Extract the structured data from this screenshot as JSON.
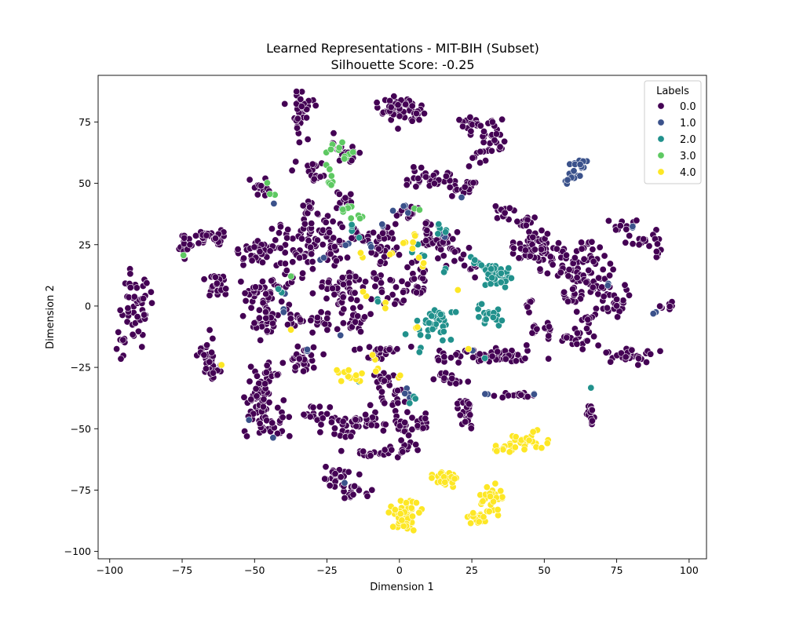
{
  "chart_data": {
    "type": "scatter",
    "title": "Learned Representations - MIT-BIH (Subset)",
    "subtitle": "Silhouette Score: -0.25",
    "xlabel": "Dimension 1",
    "ylabel": "Dimension 2",
    "xlim": [
      -104,
      106
    ],
    "ylim": [
      -103,
      94
    ],
    "xticks": [
      -100,
      -75,
      -50,
      -25,
      0,
      25,
      50,
      75,
      100
    ],
    "yticks": [
      -100,
      -75,
      -50,
      -25,
      0,
      25,
      50,
      75
    ],
    "grid": false,
    "legend": {
      "title": "Labels",
      "placement": "top-right"
    },
    "series": [
      {
        "name": "0.0",
        "color": "#440154",
        "clusters": [
          [
            -91,
            0,
            3,
            10,
            40
          ],
          [
            -95,
            -15,
            2,
            5,
            10
          ],
          [
            -88,
            5,
            3,
            3,
            8
          ],
          [
            -34,
            78,
            2,
            5,
            30
          ],
          [
            -33,
            83,
            3,
            2,
            10
          ],
          [
            -75,
            24,
            2,
            3,
            15
          ],
          [
            -67,
            28,
            5,
            2,
            25
          ],
          [
            -62,
            28,
            2,
            2,
            8
          ],
          [
            -62,
            8,
            3,
            3,
            25
          ],
          [
            -66,
            -20,
            2,
            6,
            25
          ],
          [
            -64,
            -26,
            2,
            3,
            8
          ],
          [
            0,
            80,
            4,
            3,
            50
          ],
          [
            6,
            78,
            2,
            2,
            10
          ],
          [
            -31,
            57,
            3,
            2,
            10
          ],
          [
            -19,
            62,
            3,
            3,
            30
          ],
          [
            -18,
            43,
            2,
            2,
            10
          ],
          [
            -48,
            48,
            2,
            2,
            15
          ],
          [
            -49,
            22,
            5,
            4,
            40
          ],
          [
            -33,
            31,
            3,
            4,
            15
          ],
          [
            -32,
            40,
            3,
            2,
            10
          ],
          [
            -48,
            4,
            4,
            3,
            30
          ],
          [
            -46,
            -7,
            3,
            4,
            30
          ],
          [
            -33,
            22,
            4,
            4,
            25
          ],
          [
            -27,
            -7,
            3,
            3,
            15
          ],
          [
            -34,
            -22,
            3,
            4,
            30
          ],
          [
            -48,
            -38,
            3,
            8,
            60
          ],
          [
            -42,
            -48,
            3,
            3,
            20
          ],
          [
            -45,
            -28,
            3,
            3,
            15
          ],
          [
            -28,
            -45,
            4,
            3,
            20
          ],
          [
            -17,
            -48,
            5,
            3,
            30
          ],
          [
            -10,
            -45,
            3,
            3,
            10
          ],
          [
            -22,
            -70,
            3,
            3,
            20
          ],
          [
            -15,
            -76,
            4,
            2,
            15
          ],
          [
            -10,
            -60,
            4,
            1,
            15
          ],
          [
            0,
            -58,
            4,
            2,
            15
          ],
          [
            -22,
            22,
            3,
            4,
            25
          ],
          [
            -17,
            10,
            3,
            3,
            20
          ],
          [
            -13,
            28,
            3,
            3,
            15
          ],
          [
            -5,
            28,
            3,
            3,
            15
          ],
          [
            -20,
            2,
            3,
            3,
            20
          ],
          [
            -16,
            -8,
            3,
            3,
            15
          ],
          [
            -8,
            10,
            4,
            3,
            15
          ],
          [
            -7,
            -18,
            6,
            2,
            20
          ],
          [
            -5,
            -30,
            4,
            2,
            15
          ],
          [
            -2,
            -38,
            3,
            3,
            15
          ],
          [
            2,
            -48,
            4,
            3,
            20
          ],
          [
            8,
            -47,
            3,
            2,
            10
          ],
          [
            2,
            38,
            3,
            3,
            15
          ],
          [
            12,
            52,
            6,
            3,
            35
          ],
          [
            22,
            48,
            3,
            2,
            15
          ],
          [
            26,
            74,
            4,
            2,
            20
          ],
          [
            33,
            68,
            3,
            4,
            20
          ],
          [
            10,
            30,
            3,
            4,
            20
          ],
          [
            18,
            22,
            3,
            3,
            15
          ],
          [
            25,
            18,
            2,
            3,
            10
          ],
          [
            5,
            10,
            4,
            4,
            25
          ],
          [
            18,
            -20,
            4,
            2,
            15
          ],
          [
            17,
            -30,
            4,
            2,
            15
          ],
          [
            23,
            -42,
            2,
            4,
            15
          ],
          [
            35,
            -20,
            8,
            2,
            50
          ],
          [
            36,
            38,
            3,
            2,
            15
          ],
          [
            44,
            34,
            3,
            2,
            15
          ],
          [
            45,
            25,
            5,
            4,
            40
          ],
          [
            52,
            20,
            4,
            4,
            30
          ],
          [
            58,
            15,
            5,
            4,
            30
          ],
          [
            60,
            5,
            3,
            3,
            15
          ],
          [
            66,
            17,
            4,
            6,
            30
          ],
          [
            70,
            5,
            4,
            4,
            25
          ],
          [
            75,
            0,
            3,
            2,
            15
          ],
          [
            64,
            -10,
            2,
            6,
            20
          ],
          [
            57,
            -13,
            3,
            2,
            10
          ],
          [
            48,
            -10,
            4,
            2,
            15
          ],
          [
            80,
            -20,
            5,
            2,
            35
          ],
          [
            79,
            34,
            3,
            2,
            10
          ],
          [
            85,
            27,
            4,
            3,
            15
          ],
          [
            89,
            22,
            2,
            2,
            6
          ],
          [
            93,
            0,
            2,
            2,
            8
          ],
          [
            66,
            -44,
            1,
            3,
            15
          ],
          [
            45,
            0,
            1,
            2,
            6
          ],
          [
            40,
            -36,
            5,
            1,
            15
          ],
          [
            23,
            -48,
            2,
            3,
            8
          ],
          [
            -5,
            22,
            3,
            3,
            15
          ],
          [
            0,
            2,
            3,
            3,
            10
          ],
          [
            14,
            28,
            3,
            3,
            15
          ],
          [
            -38,
            10,
            3,
            3,
            15
          ],
          [
            -36,
            -5,
            3,
            3,
            15
          ],
          [
            -24,
            8,
            3,
            3,
            15
          ],
          [
            30,
            62,
            3,
            3,
            10
          ],
          [
            -42,
            28,
            3,
            3,
            10
          ],
          [
            -25,
            32,
            3,
            3,
            15
          ],
          [
            -28,
            52,
            2,
            2,
            8
          ]
        ]
      },
      {
        "name": "1.0",
        "color": "#3b528b",
        "clusters": [
          [
            61,
            56,
            2,
            3,
            18
          ],
          [
            58,
            50,
            1,
            1,
            3
          ],
          [
            72,
            10,
            1,
            1,
            2
          ],
          [
            88,
            -4,
            1,
            1,
            2
          ],
          [
            80,
            32,
            1,
            1,
            2
          ],
          [
            0,
            38,
            2,
            2,
            4
          ],
          [
            -40,
            -2,
            1,
            1,
            2
          ],
          [
            -20,
            -72,
            1,
            1,
            1
          ],
          [
            -52,
            -46,
            1,
            1,
            1
          ],
          [
            -44,
            -54,
            1,
            1,
            1
          ],
          [
            -32,
            -18,
            1,
            1,
            2
          ],
          [
            3,
            -36,
            2,
            2,
            4
          ],
          [
            46,
            -36,
            1,
            1,
            2
          ],
          [
            30,
            -35,
            1,
            1,
            2
          ],
          [
            -43,
            43,
            1,
            1,
            1
          ],
          [
            22,
            45,
            1,
            1,
            1
          ],
          [
            -10,
            25,
            1,
            1,
            2
          ],
          [
            14,
            28,
            1,
            1,
            2
          ],
          [
            -6,
            32,
            1,
            1,
            2
          ],
          [
            -18,
            26,
            1,
            1,
            2
          ],
          [
            25,
            -18,
            1,
            1,
            1
          ],
          [
            -40,
            6,
            1,
            1,
            2
          ],
          [
            -28,
            20,
            1,
            1,
            2
          ],
          [
            -22,
            -12,
            1,
            1,
            1
          ]
        ]
      },
      {
        "name": "2.0",
        "color": "#21918c",
        "clusters": [
          [
            33,
            13,
            4,
            3,
            40
          ],
          [
            12,
            -6,
            4,
            4,
            35
          ],
          [
            30,
            -3,
            3,
            3,
            20
          ],
          [
            14,
            32,
            2,
            2,
            6
          ],
          [
            25,
            18,
            2,
            2,
            4
          ],
          [
            8,
            20,
            2,
            2,
            4
          ],
          [
            66,
            -34,
            1,
            1,
            1
          ],
          [
            -20,
            40,
            1,
            1,
            1
          ],
          [
            -16,
            32,
            2,
            2,
            4
          ],
          [
            -40,
            6,
            1,
            1,
            2
          ],
          [
            -7,
            2,
            1,
            1,
            2
          ],
          [
            5,
            -38,
            2,
            2,
            4
          ],
          [
            -15,
            -32,
            1,
            1,
            1
          ],
          [
            30,
            -21,
            1,
            1,
            1
          ],
          [
            8,
            -18,
            1,
            1,
            2
          ],
          [
            16,
            14,
            1,
            1,
            2
          ]
        ]
      },
      {
        "name": "3.0",
        "color": "#5ec962",
        "clusters": [
          [
            -20,
            63,
            3,
            3,
            12
          ],
          [
            -23,
            50,
            1,
            1,
            5
          ],
          [
            -44,
            46,
            1,
            1,
            2
          ],
          [
            -18,
            40,
            2,
            1,
            6
          ],
          [
            -15,
            36,
            2,
            1,
            4
          ],
          [
            -73,
            22,
            1,
            1,
            1
          ],
          [
            -47,
            49,
            1,
            1,
            1
          ],
          [
            -38,
            12,
            1,
            1,
            1
          ],
          [
            7,
            40,
            1,
            1,
            2
          ],
          [
            -25,
            56,
            1,
            1,
            2
          ]
        ]
      },
      {
        "name": "4.0",
        "color": "#fde725",
        "clusters": [
          [
            2,
            -85,
            3,
            4,
            60
          ],
          [
            15,
            -70,
            3,
            2,
            25
          ],
          [
            27,
            -86,
            2,
            2,
            20
          ],
          [
            32,
            -78,
            3,
            4,
            25
          ],
          [
            44,
            -55,
            4,
            2,
            25
          ],
          [
            36,
            -58,
            3,
            1,
            10
          ],
          [
            -18,
            -28,
            3,
            2,
            12
          ],
          [
            -8,
            -26,
            1,
            1,
            2
          ],
          [
            0,
            -28,
            1,
            1,
            2
          ],
          [
            3,
            27,
            2,
            4,
            6
          ],
          [
            8,
            17,
            1,
            2,
            3
          ],
          [
            -2,
            22,
            1,
            1,
            2
          ],
          [
            -10,
            -20,
            1,
            1,
            2
          ],
          [
            -4,
            0,
            1,
            1,
            2
          ],
          [
            -62,
            -24,
            1,
            1,
            1
          ],
          [
            22,
            -18,
            1,
            1,
            1
          ],
          [
            -13,
            20,
            1,
            1,
            2
          ],
          [
            6,
            -8,
            1,
            1,
            2
          ],
          [
            -12,
            4,
            1,
            1,
            2
          ],
          [
            -37,
            -10,
            1,
            1,
            1
          ],
          [
            20,
            6,
            1,
            1,
            1
          ]
        ]
      }
    ]
  }
}
